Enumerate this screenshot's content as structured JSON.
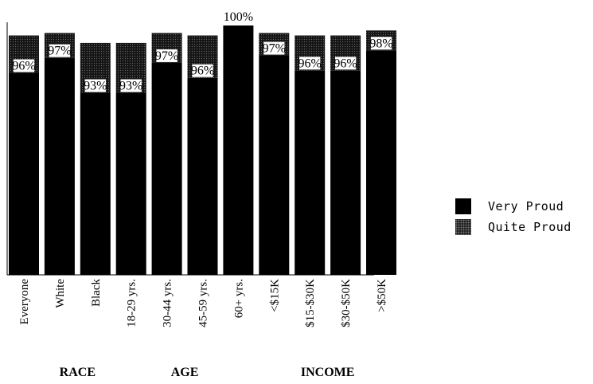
{
  "chart_data": {
    "type": "bar",
    "stacked": true,
    "categories": [
      "Everyone",
      "White",
      "Black",
      "18-29 yrs.",
      "30-44 yrs.",
      "45-59 yrs.",
      "60+ yrs.",
      "<$15K",
      "$15-$30K",
      "$30-$50K",
      ">$50K"
    ],
    "category_labels": [
      "Everyone",
      "White",
      "Black",
      "18-29 yrs.",
      "30-44 yrs.",
      "45-59 yrs.",
      "60+ yrs.",
      "<$15K",
      "$15-$30K",
      "$30-$50K",
      ">$50K"
    ],
    "groups": [
      {
        "label": "RACE",
        "categories": [
          "White",
          "Black"
        ]
      },
      {
        "label": "AGE",
        "categories": [
          "30-44 yrs.",
          "45-59 yrs."
        ]
      },
      {
        "label": "INCOME",
        "categories": [
          "$15-$30K",
          "$30-$50K"
        ]
      }
    ],
    "series": [
      {
        "name": "Very Proud",
        "values": [
          81,
          87,
          73,
          73,
          85,
          79,
          100,
          88,
          82,
          82,
          90
        ]
      },
      {
        "name": "Quite Proud",
        "values": [
          15,
          10,
          20,
          20,
          12,
          17,
          0,
          9,
          14,
          14,
          8
        ]
      }
    ],
    "totals": [
      96,
      97,
      93,
      93,
      97,
      96,
      100,
      97,
      96,
      96,
      98
    ],
    "data_labels": [
      "96%",
      "97%",
      "93%",
      "93%",
      "97%",
      "96%",
      "100%",
      "97%",
      "96%",
      "96%",
      "98%"
    ],
    "ylim": [
      0,
      100
    ],
    "legend_position": "right",
    "grid": false,
    "title": "",
    "xlabel": "",
    "ylabel": ""
  },
  "legend": {
    "items": [
      {
        "label": "Very Proud",
        "swatch": "very"
      },
      {
        "label": "Quite Proud",
        "swatch": "quite"
      }
    ]
  }
}
